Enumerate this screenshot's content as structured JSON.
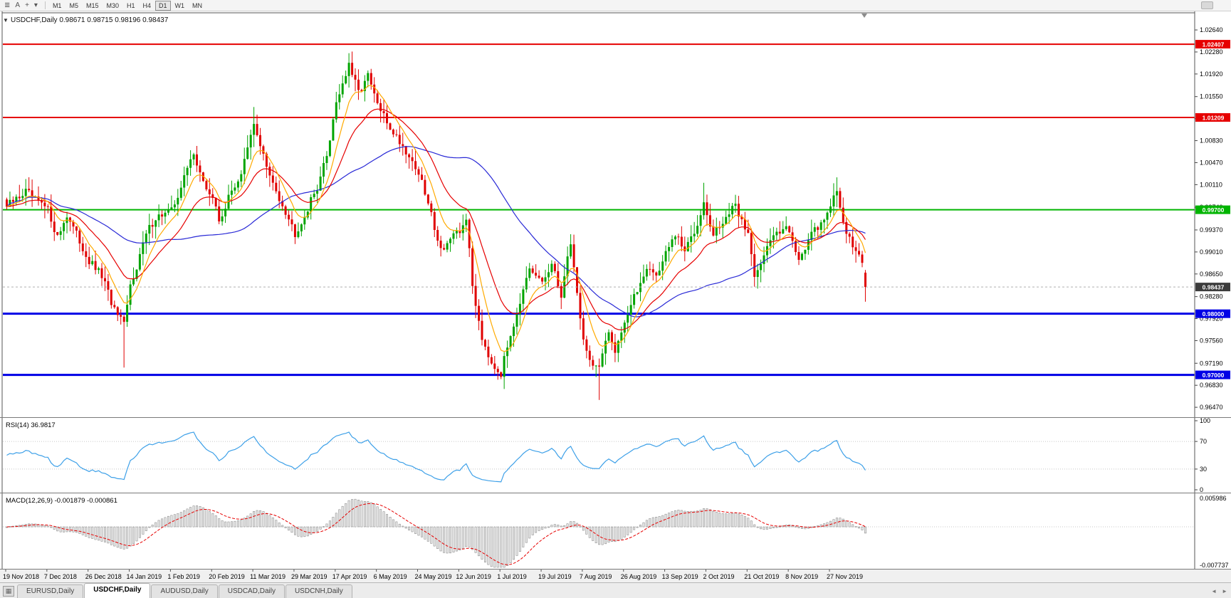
{
  "toolbar": {
    "icons": [
      {
        "name": "symbol-list-icon",
        "glyph": "≣"
      },
      {
        "name": "text-tool-icon",
        "glyph": "A"
      },
      {
        "name": "crosshair-tool-icon",
        "glyph": "+"
      },
      {
        "name": "cursor-dropdown-icon",
        "glyph": "▾"
      }
    ],
    "timeframes": [
      "M1",
      "M5",
      "M15",
      "M30",
      "H1",
      "H4",
      "D1",
      "W1",
      "MN"
    ],
    "active_timeframe": "D1"
  },
  "tabs": {
    "corner_icon": "▦",
    "items": [
      "EURUSD,Daily",
      "USDCHF,Daily",
      "AUDUSD,Daily",
      "USDCAD,Daily",
      "USDCNH,Daily"
    ],
    "active": "USDCHF,Daily",
    "scroll_left": "◄",
    "scroll_right": "►"
  },
  "chart_data": {
    "type": "candlestick",
    "title": "USDCHF,Daily   0.98671 0.98715 0.98196 0.98437",
    "collapse_icon": "▼",
    "symbol": "USDCHF",
    "timeframe": "Daily",
    "ohlc": {
      "open": 0.98671,
      "high": 0.98715,
      "low": 0.98196,
      "close": 0.98437
    },
    "y_ticks": [
      "1.02640",
      "1.02280",
      "1.01920",
      "1.01550",
      "1.01190",
      "1.00830",
      "1.00470",
      "1.00110",
      "0.99740",
      "0.99370",
      "0.99010",
      "0.98650",
      "0.98280",
      "0.97920",
      "0.97560",
      "0.97190",
      "0.96830",
      "0.96470"
    ],
    "y_range": {
      "max": 1.0292,
      "min": 0.9632
    },
    "levels": [
      {
        "price": 1.02407,
        "label": "1.02407",
        "color": "#e60000",
        "width": 2
      },
      {
        "price": 1.01209,
        "label": "1.01209",
        "color": "#e60000",
        "width": 2
      },
      {
        "price": 0.997,
        "label": "0.99700",
        "color": "#00b400",
        "width": 2
      },
      {
        "price": 0.98,
        "label": "0.98000",
        "color": "#0000e6",
        "width": 3
      },
      {
        "price": 0.97,
        "label": "0.97000",
        "color": "#0000e6",
        "width": 3
      }
    ],
    "current_price": {
      "value": 0.98437,
      "label": "0.98437",
      "tag_color": "#3c3c3c"
    },
    "x_labels": [
      {
        "i": 0,
        "t": "19 Nov 2018"
      },
      {
        "i": 13,
        "t": "7 Dec 2018"
      },
      {
        "i": 26,
        "t": "26 Dec 2018"
      },
      {
        "i": 39,
        "t": "14 Jan 2019"
      },
      {
        "i": 52,
        "t": "1 Feb 2019"
      },
      {
        "i": 65,
        "t": "20 Feb 2019"
      },
      {
        "i": 78,
        "t": "11 Mar 2019"
      },
      {
        "i": 91,
        "t": "29 Mar 2019"
      },
      {
        "i": 104,
        "t": "17 Apr 2019"
      },
      {
        "i": 117,
        "t": "6 May 2019"
      },
      {
        "i": 130,
        "t": "24 May 2019"
      },
      {
        "i": 143,
        "t": "12 Jun 2019"
      },
      {
        "i": 156,
        "t": "1 Jul 2019"
      },
      {
        "i": 169,
        "t": "19 Jul 2019"
      },
      {
        "i": 182,
        "t": "7 Aug 2019"
      },
      {
        "i": 195,
        "t": "26 Aug 2019"
      },
      {
        "i": 208,
        "t": "13 Sep 2019"
      },
      {
        "i": 221,
        "t": "2 Oct 2019"
      },
      {
        "i": 234,
        "t": "21 Oct 2019"
      },
      {
        "i": 247,
        "t": "8 Nov 2019"
      },
      {
        "i": 260,
        "t": "27 Nov 2019"
      }
    ],
    "candles": {
      "count": 272,
      "up_color": "#00a400",
      "down_color": "#e00000",
      "last": {
        "o": 0.98671,
        "h": 0.98715,
        "l": 0.98196,
        "c": 0.98437
      },
      "anchors": [
        [
          0,
          0.9975
        ],
        [
          6,
          1.0
        ],
        [
          9,
          0.9985
        ],
        [
          13,
          0.997
        ],
        [
          16,
          0.9925
        ],
        [
          19,
          0.9962
        ],
        [
          26,
          0.9885
        ],
        [
          30,
          0.9862
        ],
        [
          34,
          0.9805
        ],
        [
          37,
          0.978
        ],
        [
          39,
          0.9845
        ],
        [
          44,
          0.993
        ],
        [
          47,
          0.9958
        ],
        [
          52,
          0.9968
        ],
        [
          55,
          1.0008
        ],
        [
          59,
          1.0065
        ],
        [
          62,
          1.0012
        ],
        [
          65,
          0.999
        ],
        [
          67,
          0.9952
        ],
        [
          71,
          1.0
        ],
        [
          74,
          1.003
        ],
        [
          78,
          1.0108
        ],
        [
          80,
          1.0078
        ],
        [
          83,
          1.0022
        ],
        [
          87,
          0.998
        ],
        [
          91,
          0.9932
        ],
        [
          94,
          0.996
        ],
        [
          98,
          1.0008
        ],
        [
          101,
          1.0058
        ],
        [
          104,
          1.0148
        ],
        [
          108,
          1.0205
        ],
        [
          111,
          1.0162
        ],
        [
          114,
          1.0188
        ],
        [
          117,
          1.0142
        ],
        [
          120,
          1.0112
        ],
        [
          123,
          1.009
        ],
        [
          127,
          1.0058
        ],
        [
          130,
          1.003
        ],
        [
          134,
          0.9962
        ],
        [
          137,
          0.9905
        ],
        [
          140,
          0.9922
        ],
        [
          143,
          0.9932
        ],
        [
          145,
          0.9958
        ],
        [
          147,
          0.9845
        ],
        [
          150,
          0.9762
        ],
        [
          153,
          0.9722
        ],
        [
          156,
          0.9702
        ],
        [
          159,
          0.9768
        ],
        [
          162,
          0.982
        ],
        [
          165,
          0.9868
        ],
        [
          169,
          0.9852
        ],
        [
          172,
          0.9878
        ],
        [
          175,
          0.9832
        ],
        [
          178,
          0.9918
        ],
        [
          181,
          0.9792
        ],
        [
          182,
          0.9762
        ],
        [
          184,
          0.9722
        ],
        [
          187,
          0.9712
        ],
        [
          190,
          0.9768
        ],
        [
          192,
          0.9742
        ],
        [
          195,
          0.9788
        ],
        [
          199,
          0.9838
        ],
        [
          202,
          0.9878
        ],
        [
          205,
          0.9862
        ],
        [
          208,
          0.9898
        ],
        [
          211,
          0.9928
        ],
        [
          214,
          0.9902
        ],
        [
          218,
          0.9948
        ],
        [
          220,
          0.9988
        ],
        [
          221,
          0.9958
        ],
        [
          223,
          0.9928
        ],
        [
          227,
          0.9958
        ],
        [
          230,
          0.9975
        ],
        [
          234,
          0.993
        ],
        [
          236,
          0.9866
        ],
        [
          239,
          0.9895
        ],
        [
          242,
          0.9928
        ],
        [
          246,
          0.9948
        ],
        [
          247,
          0.993
        ],
        [
          250,
          0.9892
        ],
        [
          254,
          0.9928
        ],
        [
          257,
          0.9948
        ],
        [
          260,
          0.9978
        ],
        [
          262,
          0.9998
        ],
        [
          264,
          0.9952
        ],
        [
          266,
          0.9922
        ],
        [
          268,
          0.9902
        ],
        [
          270,
          0.988
        ],
        [
          271,
          0.98437
        ]
      ],
      "spikes": [
        {
          "i": 37,
          "low": 0.9712
        },
        {
          "i": 78,
          "high": 1.0138
        },
        {
          "i": 108,
          "high": 1.0226
        },
        {
          "i": 156,
          "low": 0.9693
        },
        {
          "i": 187,
          "low": 0.9659
        },
        {
          "i": 220,
          "high": 1.0014
        },
        {
          "i": 262,
          "high": 1.0023
        }
      ]
    },
    "moving_averages": [
      {
        "name": "ma-fast",
        "color": "#ffaa00"
      },
      {
        "name": "ma-medium",
        "color": "#e60000"
      },
      {
        "name": "ma-slow",
        "color": "#2929d6"
      }
    ],
    "rsi": {
      "label": "RSI(14) 36.9817",
      "value": 36.9817,
      "axis_labels": [
        "100",
        "70",
        "30",
        "0"
      ],
      "upper_level": 70,
      "lower_level": 30,
      "line_color": "#3da0e8",
      "level_color": "#c8c8c8"
    },
    "macd": {
      "label": "MACD(12,26,9) -0.001879 -0.000861",
      "macd_value": -0.001879,
      "signal_value": -0.000861,
      "axis_max": 0.005986,
      "axis_min": -0.007737,
      "axis_max_label": "0.005986",
      "axis_min_label": "-0.007737",
      "histogram_fill": "#e9e9e9",
      "histogram_stroke": "#8f8f8f",
      "signal_color": "#e60000"
    }
  }
}
